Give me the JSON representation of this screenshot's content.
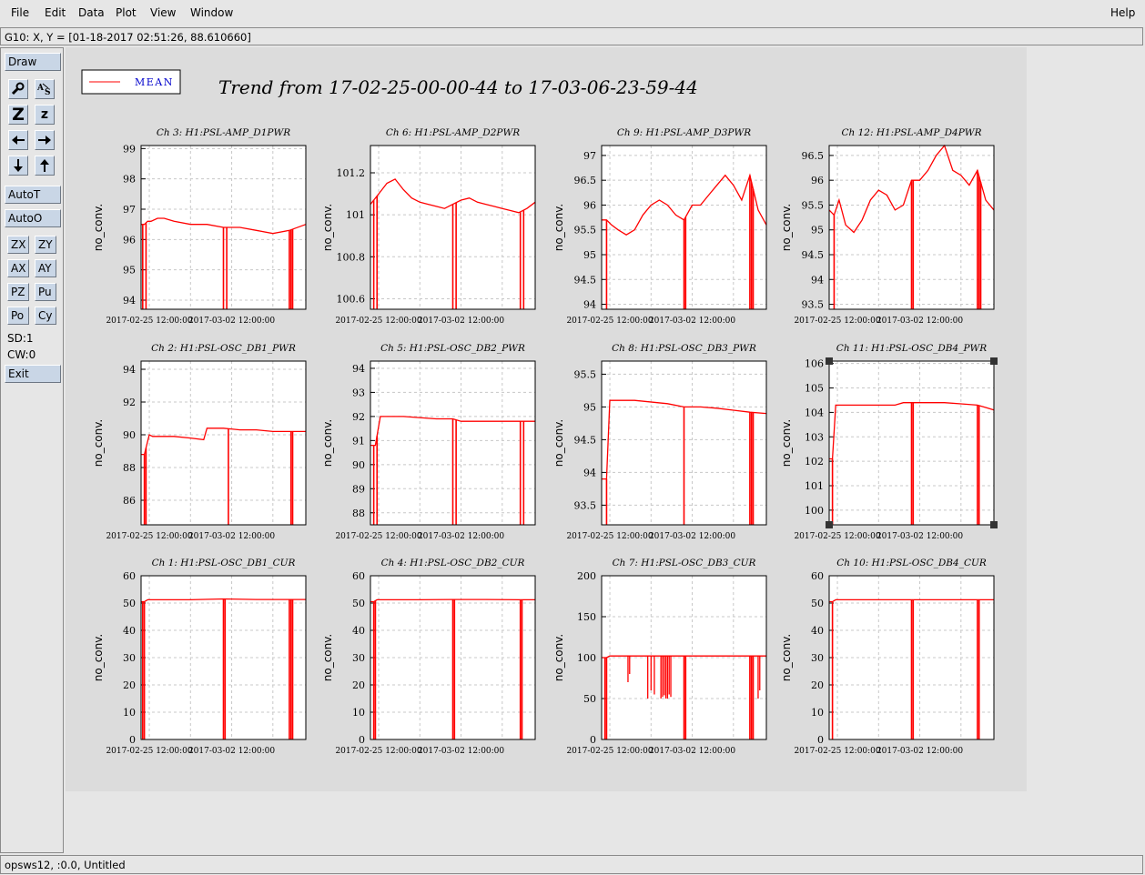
{
  "menu": {
    "file": "File",
    "edit": "Edit",
    "data": "Data",
    "plot": "Plot",
    "view": "View",
    "window": "Window",
    "help": "Help"
  },
  "coord_readout": "G10: X, Y = [01-18-2017 02:51:26, 88.610660]",
  "toolbar": {
    "draw": "Draw",
    "autot": "AutoT",
    "autoo": "AutoO",
    "zx": "ZX",
    "zy": "ZY",
    "ax": "AX",
    "ay": "AY",
    "pz": "PZ",
    "pu": "Pu",
    "po": "Po",
    "cy": "Cy",
    "sd": "SD:1",
    "cw": "CW:0",
    "exit": "Exit",
    "icons": [
      "magnify-icon",
      "autoscale-icon",
      "zoom-out-icon",
      "zoom-in-icon",
      "arrow-left-icon",
      "arrow-right-icon",
      "arrow-down-icon",
      "arrow-up-icon"
    ]
  },
  "status": "opsws12, :0.0, Untitled",
  "legend": {
    "label": "MEAN",
    "color": "#ff0000"
  },
  "page_title": "Trend from 17-02-25-00-00-44 to 17-03-06-23-59-44",
  "line_color": "#ff0000",
  "chart_data": [
    {
      "type": "line",
      "title": "Ch 3: H1:PSL-AMP_D1PWR",
      "ylabel": "no_conv.",
      "ylim": [
        93.7,
        99.1
      ],
      "yticks": [
        "99",
        "98",
        "97",
        "96",
        "95",
        "94"
      ],
      "xticks": [
        "2017-02-25 12:00:00",
        "2017-03-02 12:00:00"
      ],
      "series": [
        {
          "name": "MEAN",
          "x": [
            0,
            0.02,
            0.04,
            0.06,
            0.1,
            0.14,
            0.2,
            0.3,
            0.4,
            0.5,
            0.6,
            0.7,
            0.8,
            0.9,
            1.0
          ],
          "y": [
            96.5,
            96.5,
            96.6,
            96.6,
            96.7,
            96.7,
            96.6,
            96.5,
            96.5,
            96.4,
            96.4,
            96.3,
            96.2,
            96.3,
            96.5
          ]
        }
      ],
      "drops": [
        0.01,
        0.03,
        0.5,
        0.52,
        0.9,
        0.91,
        0.92
      ]
    },
    {
      "type": "line",
      "title": "Ch 6: H1:PSL-AMP_D2PWR",
      "ylabel": "no_conv.",
      "ylim": [
        100.55,
        101.33
      ],
      "yticks": [
        "101.2",
        "101",
        "100.8",
        "100.6"
      ],
      "xticks": [
        "2017-02-25 12:00:00",
        "2017-03-02 12:00:00"
      ],
      "series": [
        {
          "name": "MEAN",
          "x": [
            0,
            0.05,
            0.1,
            0.15,
            0.2,
            0.25,
            0.3,
            0.35,
            0.4,
            0.45,
            0.5,
            0.55,
            0.6,
            0.65,
            0.7,
            0.75,
            0.8,
            0.85,
            0.9,
            0.95,
            1.0
          ],
          "y": [
            101.05,
            101.1,
            101.15,
            101.17,
            101.12,
            101.08,
            101.06,
            101.05,
            101.04,
            101.03,
            101.05,
            101.07,
            101.08,
            101.06,
            101.05,
            101.04,
            101.03,
            101.02,
            101.01,
            101.03,
            101.06
          ]
        }
      ],
      "drops": [
        0.02,
        0.04,
        0.5,
        0.52,
        0.91,
        0.93
      ]
    },
    {
      "type": "line",
      "title": "Ch 9: H1:PSL-AMP_D3PWR",
      "ylabel": "no_conv.",
      "ylim": [
        93.9,
        97.2
      ],
      "yticks": [
        "97",
        "96.5",
        "96",
        "95.5",
        "95",
        "94.5",
        "94"
      ],
      "xticks": [
        "2017-02-25 12:00:00",
        "2017-03-02 12:00:00"
      ],
      "series": [
        {
          "name": "MEAN",
          "x": [
            0,
            0.03,
            0.06,
            0.1,
            0.15,
            0.2,
            0.25,
            0.3,
            0.35,
            0.4,
            0.45,
            0.5,
            0.55,
            0.6,
            0.65,
            0.7,
            0.75,
            0.8,
            0.85,
            0.9,
            0.95,
            1.0
          ],
          "y": [
            95.7,
            95.7,
            95.6,
            95.5,
            95.4,
            95.5,
            95.8,
            96.0,
            96.1,
            96.0,
            95.8,
            95.7,
            96.0,
            96.0,
            96.2,
            96.4,
            96.6,
            96.4,
            96.1,
            96.6,
            95.9,
            95.6
          ]
        }
      ],
      "drops": [
        0.03,
        0.5,
        0.51,
        0.9,
        0.91,
        0.92
      ]
    },
    {
      "type": "line",
      "title": "Ch 12: H1:PSL-AMP_D4PWR",
      "ylabel": "no_conv.",
      "ylim": [
        93.4,
        96.7
      ],
      "yticks": [
        "96.5",
        "96",
        "95.5",
        "95",
        "94.5",
        "94",
        "93.5"
      ],
      "xticks": [
        "2017-02-25 12:00:00",
        "2017-03-02 12:00:00"
      ],
      "series": [
        {
          "name": "MEAN",
          "x": [
            0,
            0.03,
            0.06,
            0.1,
            0.15,
            0.2,
            0.25,
            0.3,
            0.35,
            0.4,
            0.45,
            0.5,
            0.55,
            0.6,
            0.65,
            0.7,
            0.75,
            0.8,
            0.85,
            0.9,
            0.95,
            1.0
          ],
          "y": [
            95.4,
            95.3,
            95.6,
            95.1,
            94.95,
            95.2,
            95.6,
            95.8,
            95.7,
            95.4,
            95.5,
            96.0,
            96.0,
            96.2,
            96.5,
            96.7,
            96.2,
            96.1,
            95.9,
            96.2,
            95.6,
            95.4
          ]
        }
      ],
      "drops": [
        0.03,
        0.5,
        0.51,
        0.9,
        0.91,
        0.92
      ]
    },
    {
      "type": "line",
      "title": "Ch 2: H1:PSL-OSC_DB1_PWR",
      "ylabel": "no_conv.",
      "ylim": [
        84.5,
        94.5
      ],
      "yticks": [
        "94",
        "92",
        "90",
        "88",
        "86"
      ],
      "xticks": [
        "2017-02-25 12:00:00",
        "2017-03-02 12:00:00"
      ],
      "series": [
        {
          "name": "MEAN",
          "x": [
            0,
            0.02,
            0.05,
            0.07,
            0.2,
            0.3,
            0.38,
            0.4,
            0.5,
            0.6,
            0.7,
            0.8,
            0.9,
            1.0
          ],
          "y": [
            88.8,
            88.8,
            90.0,
            89.9,
            89.9,
            89.8,
            89.7,
            90.4,
            90.4,
            90.3,
            90.3,
            90.2,
            90.2,
            90.2
          ]
        }
      ],
      "drops": [
        0.02,
        0.03,
        0.53,
        0.91,
        0.92
      ]
    },
    {
      "type": "line",
      "title": "Ch 5: H1:PSL-OSC_DB2_PWR",
      "ylabel": "no_conv.",
      "ylim": [
        87.5,
        94.3
      ],
      "yticks": [
        "94",
        "93",
        "92",
        "91",
        "90",
        "89",
        "88"
      ],
      "xticks": [
        "2017-02-25 12:00:00",
        "2017-03-02 12:00:00"
      ],
      "series": [
        {
          "name": "MEAN",
          "x": [
            0,
            0.03,
            0.06,
            0.2,
            0.4,
            0.5,
            0.55,
            0.7,
            0.8,
            0.9,
            1.0
          ],
          "y": [
            90.8,
            90.8,
            92.0,
            92.0,
            91.9,
            91.9,
            91.8,
            91.8,
            91.8,
            91.8,
            91.8
          ]
        }
      ],
      "drops": [
        0.02,
        0.04,
        0.5,
        0.52,
        0.91,
        0.93
      ]
    },
    {
      "type": "line",
      "title": "Ch 8: H1:PSL-OSC_DB3_PWR",
      "ylabel": "no_conv.",
      "ylim": [
        93.2,
        95.7
      ],
      "yticks": [
        "95.5",
        "95",
        "94.5",
        "94",
        "93.5"
      ],
      "xticks": [
        "2017-02-25 12:00:00",
        "2017-03-02 12:00:00"
      ],
      "series": [
        {
          "name": "MEAN",
          "x": [
            0,
            0.03,
            0.05,
            0.2,
            0.4,
            0.5,
            0.6,
            0.7,
            0.8,
            0.9,
            1.0
          ],
          "y": [
            93.9,
            93.9,
            95.1,
            95.1,
            95.05,
            95.0,
            95.0,
            94.98,
            94.95,
            94.92,
            94.9
          ]
        }
      ],
      "drops": [
        0.03,
        0.5,
        0.9,
        0.91,
        0.92
      ]
    },
    {
      "type": "line",
      "title": "Ch 11: H1:PSL-OSC_DB4_PWR",
      "ylabel": "no_conv.",
      "ylim": [
        99.4,
        106.1
      ],
      "yticks": [
        "106",
        "105",
        "104",
        "103",
        "102",
        "101",
        "100"
      ],
      "xticks": [
        "2017-02-25 12:00:00",
        "2017-03-02 12:00:00"
      ],
      "series": [
        {
          "name": "MEAN",
          "x": [
            0,
            0.02,
            0.04,
            0.2,
            0.3,
            0.4,
            0.45,
            0.5,
            0.6,
            0.7,
            0.8,
            0.9,
            0.95,
            1.0
          ],
          "y": [
            102.1,
            102.1,
            104.3,
            104.3,
            104.3,
            104.3,
            104.4,
            104.4,
            104.4,
            104.4,
            104.35,
            104.3,
            104.2,
            104.1
          ]
        }
      ],
      "drops": [
        0.02,
        0.5,
        0.51,
        0.9,
        0.91
      ]
    },
    {
      "type": "line",
      "title": "Ch 1: H1:PSL-OSC_DB1_CUR",
      "ylabel": "no_conv.",
      "ylim": [
        0,
        60
      ],
      "yticks": [
        "60",
        "50",
        "40",
        "30",
        "20",
        "10",
        "0"
      ],
      "xticks": [
        "2017-02-25 12:00:00",
        "2017-03-02 12:00:00"
      ],
      "series": [
        {
          "name": "MEAN",
          "x": [
            0,
            0.02,
            0.04,
            0.3,
            0.5,
            0.7,
            0.9,
            1.0
          ],
          "y": [
            50.5,
            50.5,
            51.2,
            51.2,
            51.5,
            51.3,
            51.3,
            51.3
          ]
        }
      ],
      "drops": [
        0.01,
        0.02,
        0.5,
        0.51,
        0.9,
        0.91,
        0.92
      ]
    },
    {
      "type": "line",
      "title": "Ch 4: H1:PSL-OSC_DB2_CUR",
      "ylabel": "no_conv.",
      "ylim": [
        0,
        60
      ],
      "yticks": [
        "60",
        "50",
        "40",
        "30",
        "20",
        "10",
        "0"
      ],
      "xticks": [
        "2017-02-25 12:00:00",
        "2017-03-02 12:00:00"
      ],
      "series": [
        {
          "name": "MEAN",
          "x": [
            0,
            0.02,
            0.04,
            0.3,
            0.5,
            0.7,
            0.9,
            1.0
          ],
          "y": [
            50.5,
            50.5,
            51.2,
            51.2,
            51.3,
            51.3,
            51.2,
            51.2
          ]
        }
      ],
      "drops": [
        0.02,
        0.03,
        0.5,
        0.51,
        0.91,
        0.92
      ]
    },
    {
      "type": "line",
      "title": "Ch 7: H1:PSL-OSC_DB3_CUR",
      "ylabel": "no_conv.",
      "ylim": [
        0,
        200
      ],
      "yticks": [
        "200",
        "150",
        "100",
        "50",
        "0"
      ],
      "xticks": [
        "2017-02-25 12:00:00",
        "2017-03-02 12:00:00"
      ],
      "series": [
        {
          "name": "MEAN",
          "x": [
            0,
            0.03,
            0.05,
            0.3,
            0.5,
            0.7,
            0.9,
            1.0
          ],
          "y": [
            100,
            100,
            102,
            102,
            102,
            102,
            102,
            102
          ]
        }
      ],
      "drops": [
        0.02,
        0.03,
        0.5,
        0.51,
        0.9,
        0.91,
        0.92
      ],
      "partial_drops": [
        [
          0.16,
          70
        ],
        [
          0.17,
          80
        ],
        [
          0.28,
          50
        ],
        [
          0.3,
          60
        ],
        [
          0.32,
          55
        ],
        [
          0.36,
          50
        ],
        [
          0.37,
          52
        ],
        [
          0.38,
          54
        ],
        [
          0.39,
          50
        ],
        [
          0.4,
          50
        ],
        [
          0.41,
          55
        ],
        [
          0.42,
          52
        ],
        [
          0.95,
          50
        ],
        [
          0.96,
          60
        ]
      ]
    },
    {
      "type": "line",
      "title": "Ch 10: H1:PSL-OSC_DB4_CUR",
      "ylabel": "no_conv.",
      "ylim": [
        0,
        60
      ],
      "yticks": [
        "60",
        "50",
        "40",
        "30",
        "20",
        "10",
        "0"
      ],
      "xticks": [
        "2017-02-25 12:00:00",
        "2017-03-02 12:00:00"
      ],
      "series": [
        {
          "name": "MEAN",
          "x": [
            0,
            0.02,
            0.04,
            0.3,
            0.5,
            0.7,
            0.9,
            1.0
          ],
          "y": [
            50.5,
            50.5,
            51.2,
            51.2,
            51.2,
            51.2,
            51.2,
            51.2
          ]
        }
      ],
      "drops": [
        0.02,
        0.5,
        0.51,
        0.9,
        0.91
      ]
    }
  ]
}
